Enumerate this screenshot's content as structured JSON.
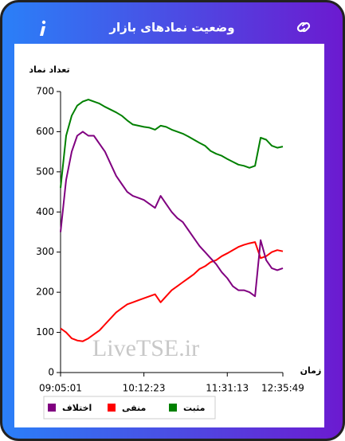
{
  "header": {
    "title": "وضعیت نمادهای بازار"
  },
  "chart_data": {
    "type": "line",
    "ylabel": "تعداد نماد",
    "xlabel": "زمان",
    "watermark": "LiveTSE.ir",
    "categories": [
      "09:05:01",
      null,
      null,
      null,
      null,
      null,
      null,
      null,
      null,
      null,
      null,
      null,
      null,
      null,
      null,
      "10:12:23",
      null,
      null,
      null,
      null,
      null,
      null,
      null,
      null,
      null,
      null,
      null,
      null,
      null,
      null,
      "11:31:13",
      null,
      null,
      null,
      null,
      null,
      null,
      null,
      null,
      null,
      "12:35:49"
    ],
    "series": [
      {
        "name": "مثبت",
        "color": "#008000",
        "values": [
          460,
          590,
          640,
          665,
          675,
          680,
          675,
          670,
          662,
          655,
          648,
          640,
          628,
          618,
          615,
          612,
          610,
          605,
          615,
          612,
          605,
          600,
          595,
          588,
          580,
          572,
          565,
          552,
          545,
          540,
          532,
          525,
          518,
          515,
          510,
          515,
          585,
          580,
          565,
          560,
          563
        ]
      },
      {
        "name": "منفی",
        "color": "#ff0000",
        "values": [
          110,
          100,
          85,
          80,
          78,
          85,
          95,
          105,
          120,
          135,
          150,
          160,
          170,
          175,
          180,
          185,
          190,
          195,
          175,
          190,
          205,
          215,
          225,
          235,
          245,
          258,
          265,
          275,
          280,
          290,
          297,
          305,
          313,
          318,
          322,
          325,
          285,
          290,
          300,
          305,
          302
        ]
      },
      {
        "name": "اختلاف",
        "color": "#800080",
        "values": [
          350,
          480,
          550,
          590,
          600,
          590,
          590,
          570,
          550,
          520,
          490,
          470,
          450,
          440,
          435,
          430,
          420,
          410,
          440,
          420,
          400,
          385,
          375,
          355,
          335,
          315,
          300,
          285,
          270,
          250,
          235,
          215,
          205,
          205,
          200,
          190,
          330,
          280,
          260,
          255,
          260
        ]
      }
    ],
    "ylim": [
      0,
      700
    ],
    "yticks": [
      0,
      100,
      200,
      300,
      400,
      500,
      600,
      700
    ],
    "grid": false
  }
}
